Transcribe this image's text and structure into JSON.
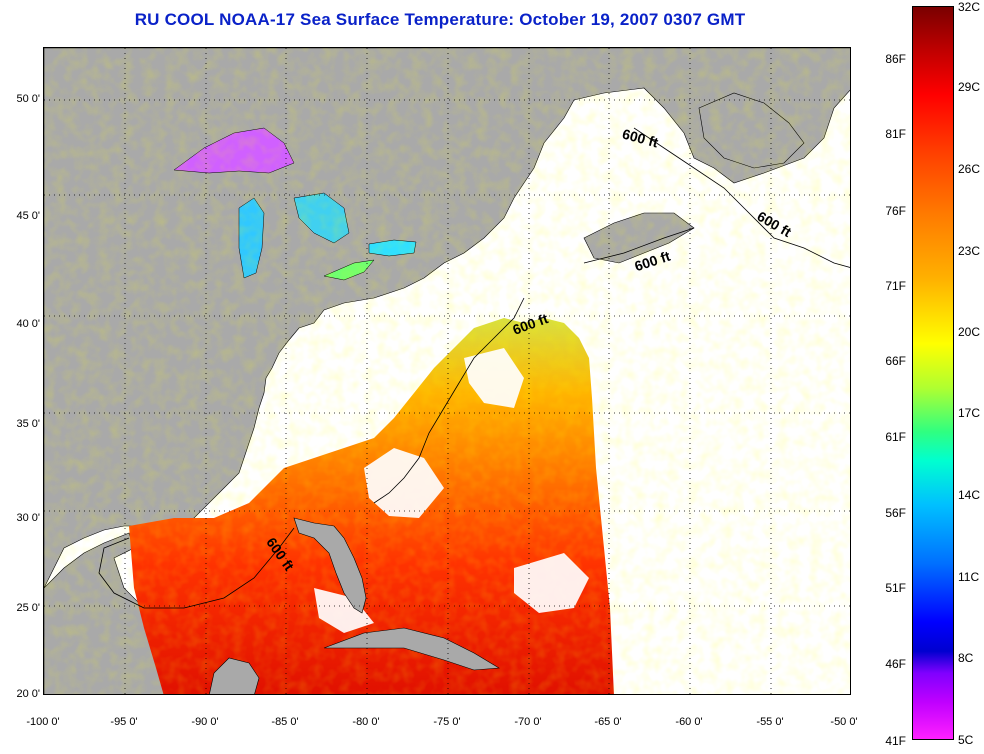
{
  "title": "RU COOL  NOAA-17  Sea Surface Temperature:  October 19, 2007 0307 GMT",
  "lat_labels": [
    "50 0'",
    "45 0'",
    "40 0'",
    "35 0'",
    "30 0'",
    "25 0'",
    "20 0'"
  ],
  "lon_labels": [
    "-100 0'",
    "-95 0'",
    "-90 0'",
    "-85 0'",
    "-80 0'",
    "-75 0'",
    "-70 0'",
    "-65 0'",
    "-60 0'",
    "-55 0'",
    "-50 0'"
  ],
  "isobath_labels": [
    "600 ft",
    "600 ft",
    "600 ft",
    "600 ft",
    "600 ft"
  ],
  "colorbar": {
    "celsius": [
      "32C",
      "29C",
      "26C",
      "23C",
      "20C",
      "17C",
      "14C",
      "11C",
      "8C",
      "5C"
    ],
    "fahrenheit": [
      "86F",
      "81F",
      "76F",
      "71F",
      "66F",
      "61F",
      "56F",
      "51F",
      "46F",
      "41F"
    ]
  },
  "colors": {
    "land": "#a9a9a9",
    "ocean_no_data": "#ffffff",
    "title": "#0a22c8",
    "gridline": "#000000"
  }
}
